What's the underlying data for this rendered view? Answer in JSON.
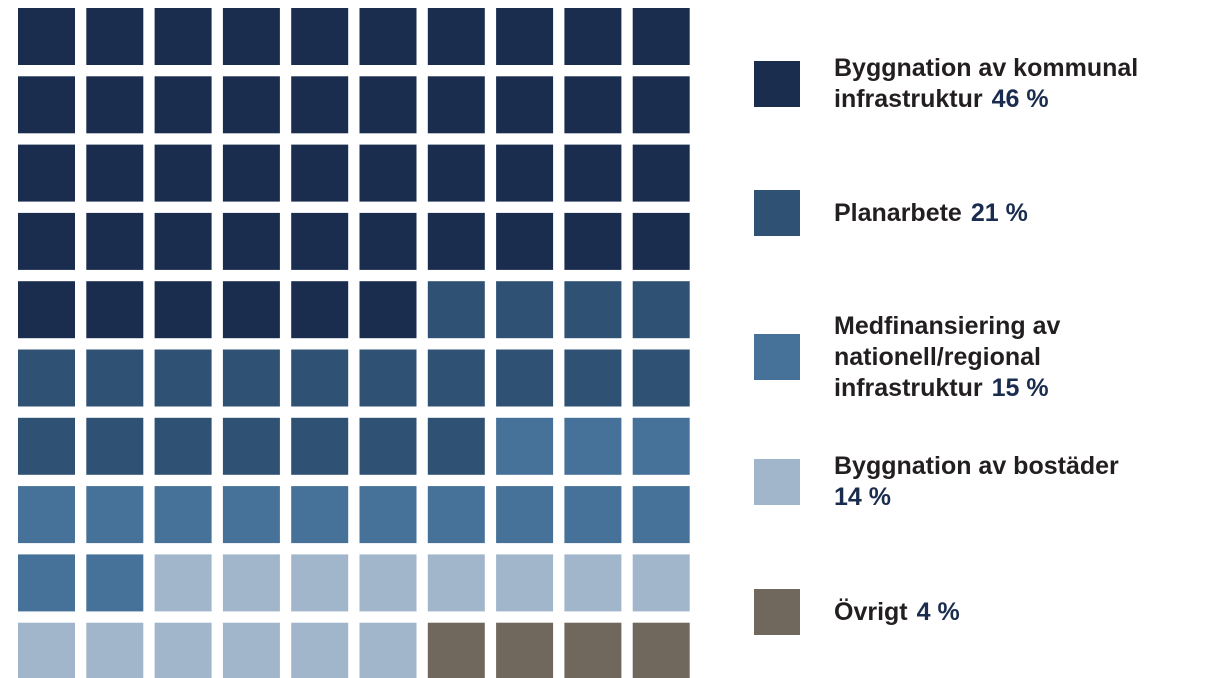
{
  "chart_data": {
    "type": "waffle",
    "grid": {
      "rows": 10,
      "cols": 10,
      "order": "row-major"
    },
    "unit": "%",
    "categories": [
      {
        "name_lines": [
          "Byggnation av kommunal",
          "infrastruktur"
        ],
        "value": 46,
        "value_label": "46 %",
        "color": "#1b2d4f"
      },
      {
        "name_lines": [
          "Planarbete"
        ],
        "value": 21,
        "value_label": "21 %",
        "color": "#2f5174"
      },
      {
        "name_lines": [
          "Medfinansiering av",
          "nationell/regional",
          "infrastruktur"
        ],
        "value": 15,
        "value_label": "15 %",
        "color": "#467198"
      },
      {
        "name_lines": [
          "Byggnation av bostäder"
        ],
        "value": 14,
        "value_label": "14 %",
        "value_on_new_line": true,
        "color": "#a1b6ca"
      },
      {
        "name_lines": [
          "Övrigt"
        ],
        "value": 4,
        "value_label": "4 %",
        "color": "#70685d"
      }
    ]
  },
  "colors": {
    "label_text": "#231f20",
    "value_text": "#1b2d4f",
    "background": "#ffffff"
  }
}
